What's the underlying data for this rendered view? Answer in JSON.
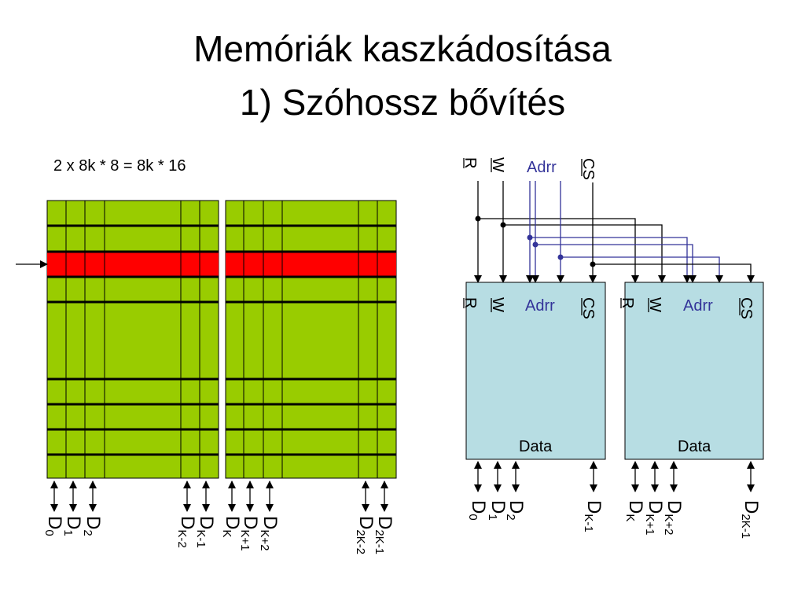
{
  "title": {
    "line1": "Memóriák kaszkádosítása",
    "line2": "1) Szóhossz bővítés"
  },
  "formula": "2 x 8k * 8 = 8k * 16",
  "colors": {
    "cell": "#99cc00",
    "selected_row": "#ff0000",
    "chip": "#b7dde3",
    "addr": "#333399"
  },
  "memory_array": {
    "left_pins": [
      {
        "main": "D",
        "sub": "0"
      },
      {
        "main": "D",
        "sub": "1"
      },
      {
        "main": "D",
        "sub": "2"
      },
      {
        "main": "D",
        "sub": "K-2"
      },
      {
        "main": "D",
        "sub": "K-1"
      },
      {
        "main": "D",
        "sub": "K"
      },
      {
        "main": "D",
        "sub": "K+1"
      },
      {
        "main": "D",
        "sub": "K+2"
      },
      {
        "main": "D",
        "sub": "2K-2"
      },
      {
        "main": "D",
        "sub": "2K-1"
      }
    ]
  },
  "bus": {
    "r": "R",
    "w": "W",
    "adrr": "Adrr",
    "cs": "CS"
  },
  "chips": [
    {
      "r": "R",
      "w": "W",
      "adrr": "Adrr",
      "cs": "CS",
      "data": "Data",
      "pins": [
        {
          "main": "D",
          "sub": "0"
        },
        {
          "main": "D",
          "sub": "1"
        },
        {
          "main": "D",
          "sub": "2"
        },
        {
          "main": "D",
          "sub": "K-1"
        }
      ]
    },
    {
      "r": "R",
      "w": "W",
      "adrr": "Adrr",
      "cs": "CS",
      "data": "Data",
      "pins": [
        {
          "main": "D",
          "sub": "K"
        },
        {
          "main": "D",
          "sub": "K+1"
        },
        {
          "main": "D",
          "sub": "K+2"
        },
        {
          "main": "D",
          "sub": "2K-1"
        }
      ]
    }
  ]
}
